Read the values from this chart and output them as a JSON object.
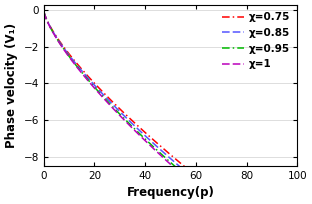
{
  "title": "",
  "xlabel": "Frequency(p)",
  "ylabel": "Phase velocity (V₁)",
  "xlim": [
    0,
    100
  ],
  "ylim": [
    -8.5,
    0.3
  ],
  "yticks": [
    0,
    -2,
    -4,
    -6,
    -8
  ],
  "xticks": [
    0,
    20,
    40,
    60,
    80,
    100
  ],
  "series": [
    {
      "label": "χ=0.75",
      "chi": 0.75,
      "color": "#ff0000",
      "linestyle": "dashdot"
    },
    {
      "label": "χ=0.85",
      "chi": 0.85,
      "color": "#5555ff",
      "linestyle": "dashed"
    },
    {
      "label": "χ=0.95",
      "chi": 0.95,
      "color": "#00bb00",
      "linestyle": "dashdot"
    },
    {
      "label": "χ=1",
      "chi": 1.0,
      "color": "#bb00bb",
      "linestyle": "dashed"
    }
  ],
  "legend_fontsize": 7.5,
  "axis_fontsize": 8.5,
  "tick_fontsize": 7.5,
  "background_color": "#ffffff",
  "grid_color": "#d0d0d0",
  "lw": 1.1
}
